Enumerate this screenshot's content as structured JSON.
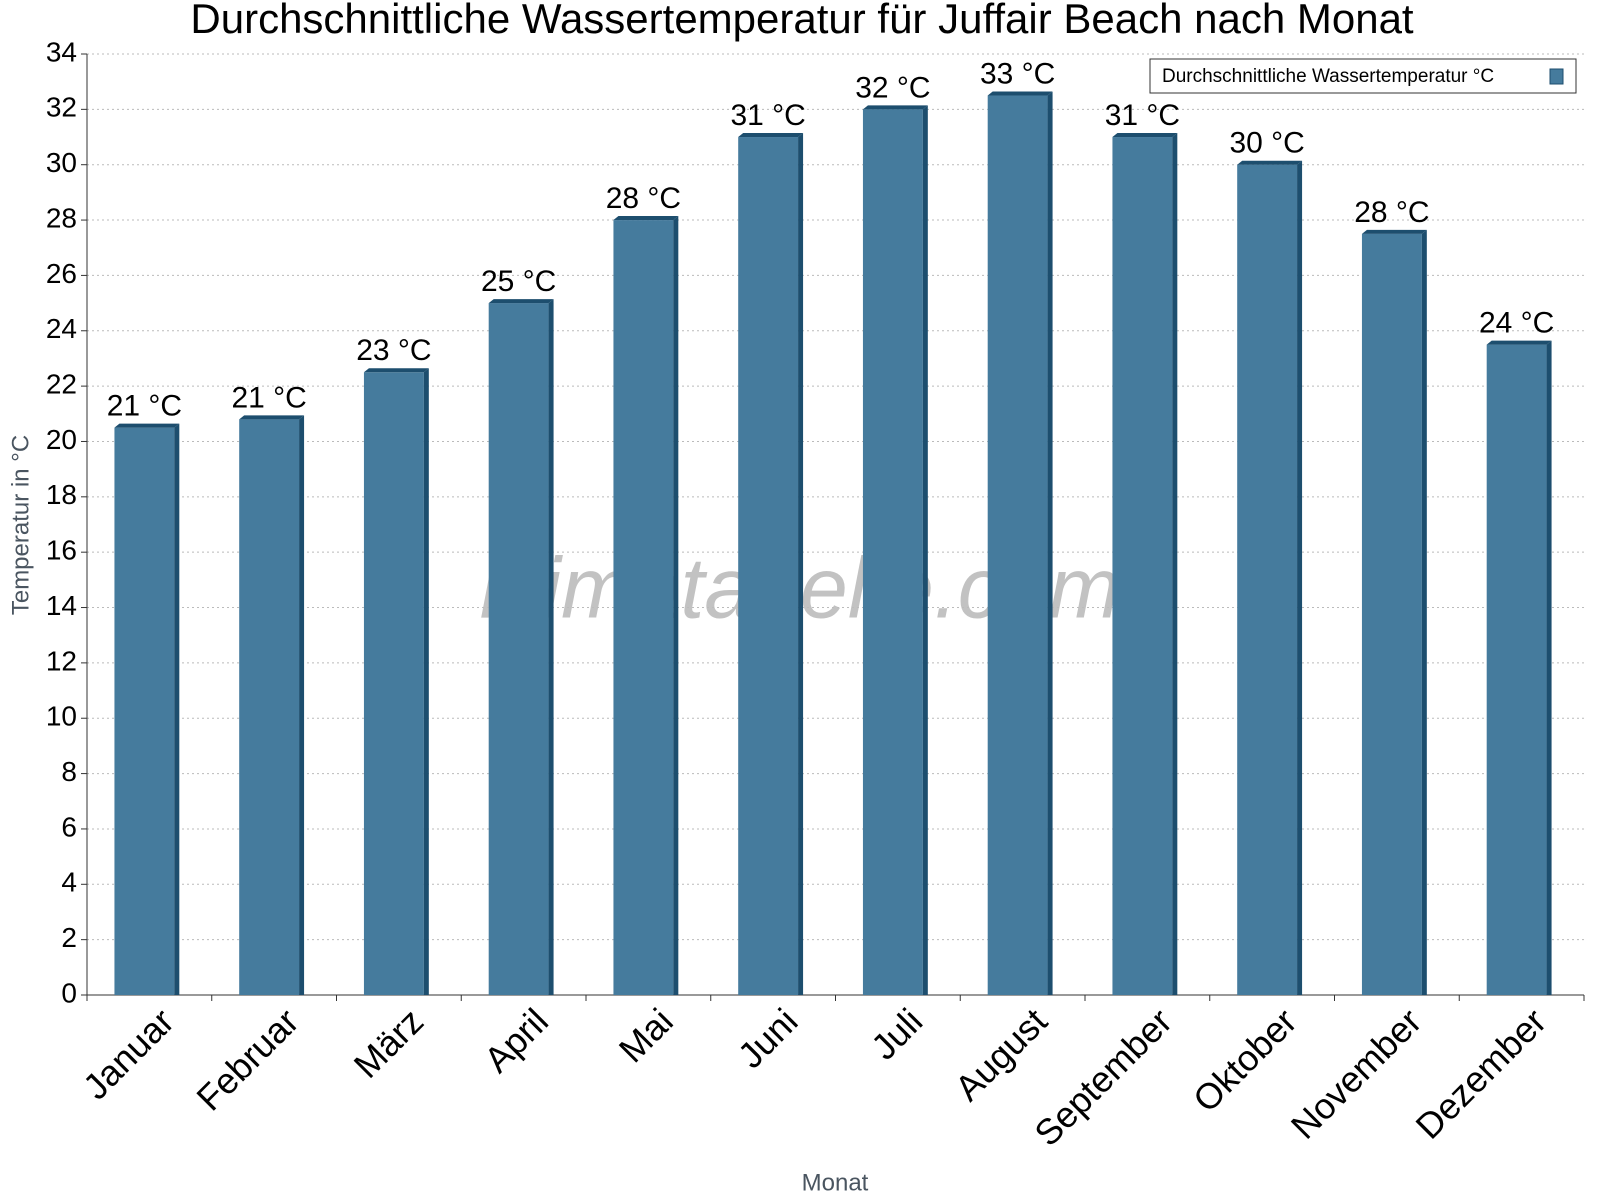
{
  "chart_data": {
    "type": "bar",
    "title": "Durchschnittliche Wassertemperatur für Juffair Beach nach Monat",
    "x_label": "Monat",
    "y_label": "Temperatur in °C",
    "watermark": "klimatabelle.com",
    "categories": [
      "Januar",
      "Februar",
      "März",
      "April",
      "Mai",
      "Juni",
      "Juli",
      "August",
      "September",
      "Oktober",
      "November",
      "Dezember"
    ],
    "series": [
      {
        "name": "Durchschnittliche Wassertemperatur °C",
        "color": "#457b9d",
        "values": [
          20.5,
          20.8,
          22.5,
          25,
          28,
          31,
          32,
          32.5,
          31,
          30,
          27.5,
          23.5
        ],
        "value_labels": [
          "21 °C",
          "21 °C",
          "23 °C",
          "25 °C",
          "28 °C",
          "31 °C",
          "32 °C",
          "33 °C",
          "31 °C",
          "30 °C",
          "28 °C",
          "24 °C"
        ]
      }
    ],
    "ylim": [
      0,
      34
    ],
    "yticks": [
      0,
      2,
      4,
      6,
      8,
      10,
      12,
      14,
      16,
      18,
      20,
      22,
      24,
      26,
      28,
      30,
      32,
      34
    ],
    "grid": true,
    "legend": "top-right"
  }
}
